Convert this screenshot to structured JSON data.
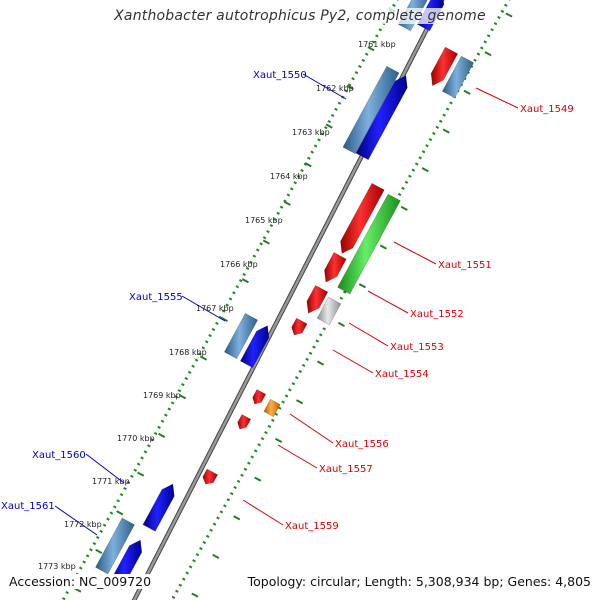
{
  "title": "Xanthobacter autotrophicus Py2, complete genome",
  "footer": {
    "accession": "Accession: NC_009720",
    "topology": "Topology: circular; Length: 5,308,934 bp; Genes: 4,805"
  },
  "colors": {
    "backbone": "#7f7f7f",
    "tick": "#1f8a1f",
    "forward_gene": "#0000ee",
    "forward_gene_alt": "#4682b4",
    "reverse_gene": "#ee0000",
    "reverse_gene_alt": "#4682b4",
    "rna_gene": "#33cc33",
    "misc_gene": "#c0c0c0",
    "orange_gene": "#ff8c00",
    "label_forward": "#0000cc",
    "label_reverse": "#dd0000"
  },
  "kbp_labels": [
    "1761 kbp",
    "1762 kbp",
    "1763 kbp",
    "1764 kbp",
    "1765 kbp",
    "1766 kbp",
    "1767 kbp",
    "1768 kbp",
    "1769 kbp",
    "1770 kbp",
    "1771 kbp",
    "1772 kbp",
    "1773 kbp"
  ],
  "gene_labels": {
    "forward": [
      "Xaut_1550",
      "Xaut_1555",
      "Xaut_1560",
      "Xaut_1561"
    ],
    "reverse": [
      "Xaut_1549",
      "Xaut_1551",
      "Xaut_1552",
      "Xaut_1553",
      "Xaut_1554",
      "Xaut_1556",
      "Xaut_1557",
      "Xaut_1559"
    ]
  }
}
